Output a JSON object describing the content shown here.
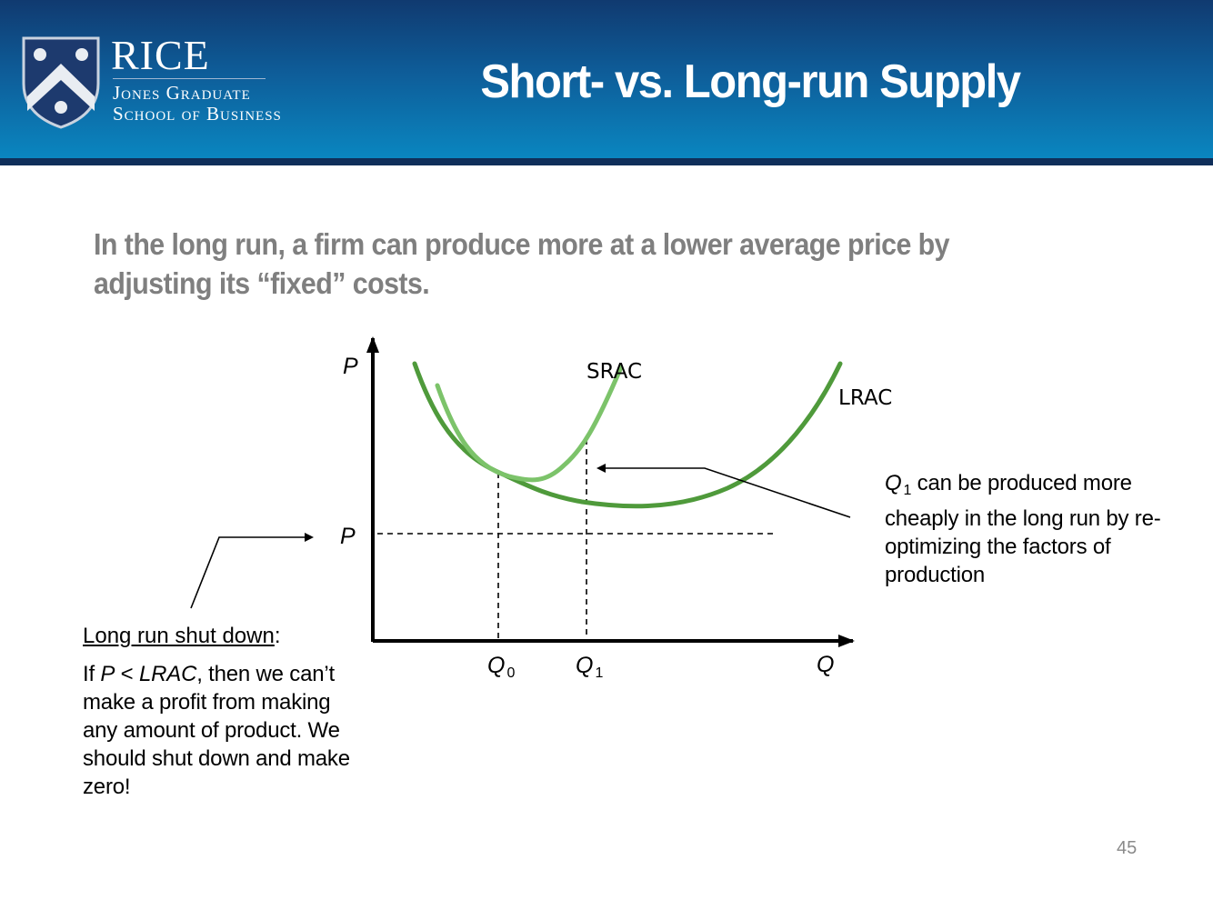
{
  "slide": {
    "title": "Short- vs. Long-run Supply",
    "subtitle": "In the long run, a firm can produce more at a lower average price by adjusting its “fixed” costs.",
    "page_number": "45"
  },
  "logo": {
    "wordmark": "RICE",
    "line1": "Jones Graduate",
    "line2": "School of Business",
    "icon": "rice-owl-shield-icon"
  },
  "diagram": {
    "y_axis_label": "P",
    "x_axis_label": "Q",
    "price_level_label": "P",
    "q0_label": "Q",
    "q0_sub": "0",
    "q1_label": "Q",
    "q1_sub": "1",
    "srac_label": "SRAC",
    "lrac_label": "LRAC",
    "srac_color": "#7cc36a",
    "lrac_color": "#4f9a3b"
  },
  "annotations": {
    "q1_note": {
      "var": "Q",
      "sub": "1",
      "text": " can be produced more cheaply in the long run by re-optimizing the factors of production"
    },
    "shutdown": {
      "heading": "Long run shut down",
      "colon": ":",
      "if": "If ",
      "p": "P",
      "lt": " < ",
      "lrac": "LRAC",
      "rest": ", then we can’t make a profit from making any amount of product.  We should shut down and make zero!"
    }
  }
}
